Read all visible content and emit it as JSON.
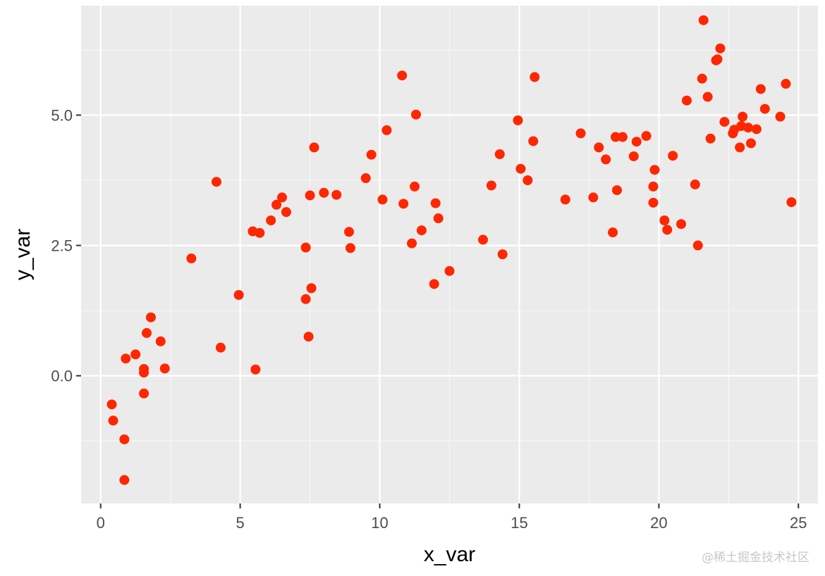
{
  "chart_data": {
    "type": "scatter",
    "xlabel": "x_var",
    "ylabel": "y_var",
    "xlim": [
      -0.7,
      25.7
    ],
    "ylim": [
      -2.45,
      7.1
    ],
    "x_ticks": [
      0,
      5,
      10,
      15,
      20,
      25
    ],
    "x_tick_labels": [
      "0",
      "5",
      "10",
      "15",
      "20",
      "25"
    ],
    "y_ticks": [
      0,
      2.5,
      5
    ],
    "y_tick_labels": [
      "0.0",
      "2.5",
      "5.0"
    ],
    "grid": true,
    "legend": "none",
    "colors": {
      "panel": "#ebebeb",
      "grid_major": "#ffffff",
      "grid_minor": "#f7f7f7",
      "point": "#ff2600"
    },
    "points": [
      {
        "x": 0.4,
        "y": -0.55
      },
      {
        "x": 0.45,
        "y": -0.86
      },
      {
        "x": 0.85,
        "y": -1.22
      },
      {
        "x": 0.85,
        "y": -2.0
      },
      {
        "x": 0.9,
        "y": 0.33
      },
      {
        "x": 1.25,
        "y": 0.41
      },
      {
        "x": 1.55,
        "y": -0.34
      },
      {
        "x": 1.55,
        "y": 0.13
      },
      {
        "x": 1.55,
        "y": 0.06
      },
      {
        "x": 1.65,
        "y": 0.82
      },
      {
        "x": 1.8,
        "y": 1.12
      },
      {
        "x": 2.15,
        "y": 0.66
      },
      {
        "x": 2.3,
        "y": 0.14
      },
      {
        "x": 3.25,
        "y": 2.25
      },
      {
        "x": 4.15,
        "y": 3.72
      },
      {
        "x": 4.3,
        "y": 0.54
      },
      {
        "x": 4.95,
        "y": 1.55
      },
      {
        "x": 5.45,
        "y": 2.77
      },
      {
        "x": 5.55,
        "y": 0.12
      },
      {
        "x": 5.7,
        "y": 2.74
      },
      {
        "x": 6.1,
        "y": 2.98
      },
      {
        "x": 6.3,
        "y": 3.28
      },
      {
        "x": 6.5,
        "y": 3.42
      },
      {
        "x": 6.65,
        "y": 3.14
      },
      {
        "x": 7.35,
        "y": 2.46
      },
      {
        "x": 7.35,
        "y": 1.47
      },
      {
        "x": 7.45,
        "y": 0.75
      },
      {
        "x": 7.5,
        "y": 3.46
      },
      {
        "x": 7.55,
        "y": 1.68
      },
      {
        "x": 7.65,
        "y": 4.38
      },
      {
        "x": 8.0,
        "y": 3.51
      },
      {
        "x": 8.45,
        "y": 3.47
      },
      {
        "x": 8.9,
        "y": 2.76
      },
      {
        "x": 8.95,
        "y": 2.45
      },
      {
        "x": 9.5,
        "y": 3.79
      },
      {
        "x": 9.7,
        "y": 4.24
      },
      {
        "x": 10.1,
        "y": 3.38
      },
      {
        "x": 10.25,
        "y": 4.71
      },
      {
        "x": 10.8,
        "y": 5.76
      },
      {
        "x": 10.85,
        "y": 3.3
      },
      {
        "x": 11.15,
        "y": 2.54
      },
      {
        "x": 11.25,
        "y": 3.63
      },
      {
        "x": 11.3,
        "y": 5.01
      },
      {
        "x": 11.5,
        "y": 2.79
      },
      {
        "x": 11.95,
        "y": 1.76
      },
      {
        "x": 12.0,
        "y": 3.31
      },
      {
        "x": 12.1,
        "y": 3.02
      },
      {
        "x": 12.5,
        "y": 2.01
      },
      {
        "x": 13.7,
        "y": 2.61
      },
      {
        "x": 14.0,
        "y": 3.65
      },
      {
        "x": 14.3,
        "y": 4.25
      },
      {
        "x": 14.4,
        "y": 2.33
      },
      {
        "x": 14.95,
        "y": 4.9
      },
      {
        "x": 15.05,
        "y": 3.97
      },
      {
        "x": 15.3,
        "y": 3.75
      },
      {
        "x": 15.5,
        "y": 4.5
      },
      {
        "x": 15.55,
        "y": 5.73
      },
      {
        "x": 16.65,
        "y": 3.38
      },
      {
        "x": 17.2,
        "y": 4.65
      },
      {
        "x": 17.65,
        "y": 3.42
      },
      {
        "x": 17.85,
        "y": 4.38
      },
      {
        "x": 18.1,
        "y": 4.15
      },
      {
        "x": 18.35,
        "y": 2.75
      },
      {
        "x": 18.45,
        "y": 4.58
      },
      {
        "x": 18.5,
        "y": 3.56
      },
      {
        "x": 18.7,
        "y": 4.58
      },
      {
        "x": 19.1,
        "y": 4.21
      },
      {
        "x": 19.2,
        "y": 4.49
      },
      {
        "x": 19.55,
        "y": 4.6
      },
      {
        "x": 19.8,
        "y": 3.63
      },
      {
        "x": 19.8,
        "y": 3.32
      },
      {
        "x": 19.85,
        "y": 3.95
      },
      {
        "x": 20.2,
        "y": 2.98
      },
      {
        "x": 20.3,
        "y": 2.8
      },
      {
        "x": 20.5,
        "y": 4.22
      },
      {
        "x": 20.8,
        "y": 2.91
      },
      {
        "x": 21.0,
        "y": 5.28
      },
      {
        "x": 21.3,
        "y": 3.67
      },
      {
        "x": 21.4,
        "y": 2.5
      },
      {
        "x": 21.55,
        "y": 5.7
      },
      {
        "x": 21.6,
        "y": 6.82
      },
      {
        "x": 21.75,
        "y": 5.35
      },
      {
        "x": 21.85,
        "y": 4.55
      },
      {
        "x": 22.05,
        "y": 6.05
      },
      {
        "x": 22.1,
        "y": 6.07
      },
      {
        "x": 22.2,
        "y": 6.28
      },
      {
        "x": 22.35,
        "y": 4.87
      },
      {
        "x": 22.65,
        "y": 4.65
      },
      {
        "x": 22.7,
        "y": 4.72
      },
      {
        "x": 22.9,
        "y": 4.38
      },
      {
        "x": 22.95,
        "y": 4.79
      },
      {
        "x": 23.0,
        "y": 4.97
      },
      {
        "x": 23.2,
        "y": 4.76
      },
      {
        "x": 23.3,
        "y": 4.46
      },
      {
        "x": 23.5,
        "y": 4.73
      },
      {
        "x": 23.65,
        "y": 5.5
      },
      {
        "x": 23.8,
        "y": 5.12
      },
      {
        "x": 24.35,
        "y": 4.97
      },
      {
        "x": 24.55,
        "y": 5.6
      },
      {
        "x": 24.75,
        "y": 3.33
      }
    ]
  },
  "watermark": "@稀土掘金技术社区"
}
